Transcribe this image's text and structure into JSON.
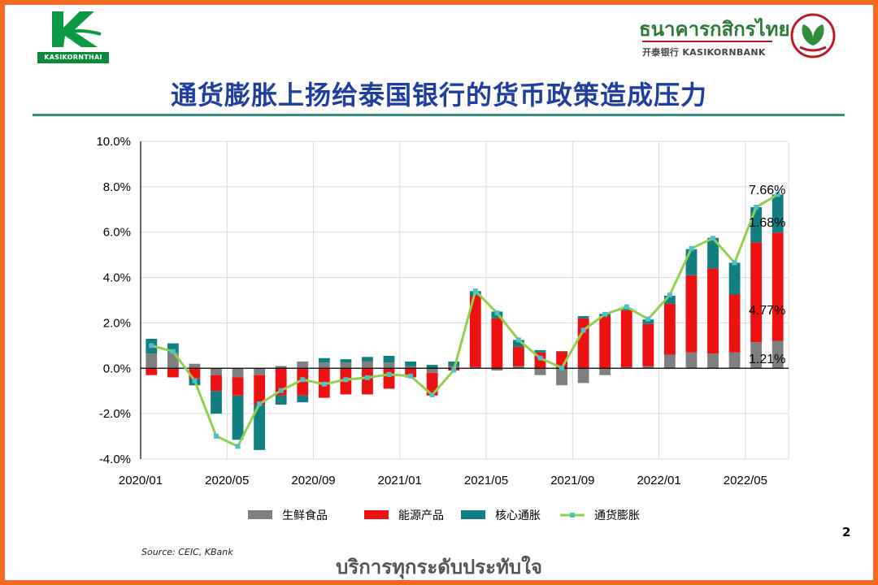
{
  "header": {
    "left_logo_text": "KASIKORNTHAI",
    "bank_name_thai": "ธนาคารกสิกรไทย",
    "bank_name_en": "开泰银行 KASIKORNBANK",
    "title": "通货膨胀上扬给泰国银行的货币政策造成压力"
  },
  "footer": {
    "source": "Source: CEIC, KBank",
    "slogan": "บริการทุกระดับประทับใจ",
    "page_number": "2"
  },
  "colors": {
    "frame": "#f26a21",
    "title": "#1e3ea0",
    "fresh_food": "#7f7f7f",
    "energy": "#ee1111",
    "core": "#117f80",
    "inflation_line": "#8fd14f",
    "inflation_marker": "#4fc0c8"
  },
  "chart_data": {
    "type": "bar",
    "stacked": true,
    "x": [
      "2020/01",
      "2020/02",
      "2020/03",
      "2020/04",
      "2020/05",
      "2020/06",
      "2020/07",
      "2020/08",
      "2020/09",
      "2020/10",
      "2020/11",
      "2020/12",
      "2021/01",
      "2021/02",
      "2021/03",
      "2021/04",
      "2021/05",
      "2021/06",
      "2021/07",
      "2021/08",
      "2021/09",
      "2021/10",
      "2021/11",
      "2021/12",
      "2022/01",
      "2022/02",
      "2022/03",
      "2022/04",
      "2022/05",
      "2022/06"
    ],
    "x_tick_labels": [
      "2020/01",
      "2020/05",
      "2020/09",
      "2021/01",
      "2021/05",
      "2021/09",
      "2022/01",
      "2022/05"
    ],
    "y_tick_labels": [
      "10.0%",
      "8.0%",
      "6.0%",
      "4.0%",
      "2.0%",
      "0.0%",
      "-2.0%",
      "-4.0%"
    ],
    "ylim": [
      -4,
      10
    ],
    "grid": true,
    "legend_position": "bottom",
    "series": [
      {
        "name": "生鲜食品",
        "kind": "bar",
        "values": [
          0.65,
          0.7,
          0.2,
          -0.3,
          -0.4,
          -0.3,
          0.1,
          0.3,
          0.25,
          0.25,
          0.3,
          0.25,
          0.1,
          -0.2,
          0.1,
          0.05,
          -0.1,
          0.1,
          -0.3,
          -0.75,
          -0.65,
          -0.3,
          0.05,
          0.1,
          0.6,
          0.7,
          0.65,
          0.7,
          1.15,
          1.21
        ]
      },
      {
        "name": "能源产品",
        "kind": "bar",
        "values": [
          -0.3,
          -0.4,
          -0.45,
          -0.7,
          -0.8,
          -1.3,
          -1.2,
          -1.2,
          -1.3,
          -1.15,
          -1.15,
          -0.9,
          -0.4,
          -1.0,
          -0.1,
          3.15,
          2.2,
          0.85,
          0.7,
          0.75,
          2.2,
          2.3,
          2.5,
          1.85,
          2.25,
          3.4,
          3.75,
          2.55,
          4.4,
          4.77
        ]
      },
      {
        "name": "核心通胀",
        "kind": "bar",
        "values": [
          0.65,
          0.4,
          -0.3,
          -1.0,
          -1.95,
          -2.0,
          -0.4,
          -0.3,
          0.2,
          0.15,
          0.2,
          0.3,
          0.2,
          0.15,
          0.2,
          0.2,
          0.3,
          0.3,
          0.1,
          0.0,
          0.1,
          0.1,
          0.1,
          0.2,
          0.35,
          1.15,
          1.35,
          1.4,
          1.55,
          1.68
        ]
      },
      {
        "name": "通货膨胀",
        "kind": "line",
        "values": [
          1.0,
          0.74,
          -0.54,
          -2.99,
          -3.44,
          -1.57,
          -0.98,
          -0.5,
          -0.7,
          -0.5,
          -0.41,
          -0.27,
          -0.34,
          -1.17,
          -0.08,
          3.41,
          2.44,
          1.25,
          0.45,
          0.02,
          1.68,
          2.38,
          2.71,
          2.17,
          3.23,
          5.28,
          5.73,
          4.65,
          7.1,
          7.66
        ]
      }
    ],
    "annotations": [
      "7.66%",
      "1.68%",
      "4.77%",
      "1.21%"
    ]
  }
}
